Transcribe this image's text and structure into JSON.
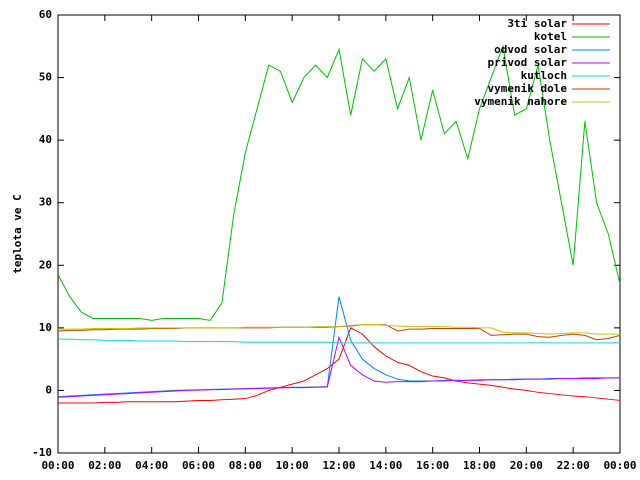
{
  "chart_data": {
    "type": "line",
    "ylabel": "teplota ve C",
    "x": [
      0,
      0.5,
      1,
      1.5,
      2,
      2.5,
      3,
      3.5,
      4,
      4.5,
      5,
      5.5,
      6,
      6.5,
      7,
      7.5,
      8,
      8.5,
      9,
      9.5,
      10,
      10.5,
      11,
      11.5,
      12,
      12.5,
      13,
      13.5,
      14,
      14.5,
      15,
      15.5,
      16,
      16.5,
      17,
      17.5,
      18,
      18.5,
      19,
      19.5,
      20,
      20.5,
      21,
      21.5,
      22,
      22.5,
      23,
      23.5,
      24
    ],
    "xlim": [
      0,
      24
    ],
    "xticks": [
      {
        "value": 0,
        "label": "00:00"
      },
      {
        "value": 2,
        "label": "02:00"
      },
      {
        "value": 4,
        "label": "04:00"
      },
      {
        "value": 6,
        "label": "06:00"
      },
      {
        "value": 8,
        "label": "08:00"
      },
      {
        "value": 10,
        "label": "10:00"
      },
      {
        "value": 12,
        "label": "12:00"
      },
      {
        "value": 14,
        "label": "14:00"
      },
      {
        "value": 16,
        "label": "16:00"
      },
      {
        "value": 18,
        "label": "18:00"
      },
      {
        "value": 20,
        "label": "20:00"
      },
      {
        "value": 22,
        "label": "22:00"
      },
      {
        "value": 24,
        "label": "00:00"
      }
    ],
    "ylim": [
      -10,
      60
    ],
    "yticks": [
      -10,
      0,
      10,
      20,
      30,
      40,
      50,
      60
    ],
    "legend": "top-right",
    "series": [
      {
        "name": "3ti solar",
        "color": "#ff0000",
        "values": [
          -2,
          -2,
          -2,
          -2,
          -1.9,
          -1.9,
          -1.8,
          -1.8,
          -1.8,
          -1.8,
          -1.8,
          -1.7,
          -1.6,
          -1.6,
          -1.5,
          -1.4,
          -1.3,
          -0.8,
          0,
          0.5,
          1,
          1.5,
          2.5,
          3.5,
          5,
          10,
          9,
          7,
          5.5,
          4.5,
          4,
          3,
          2.3,
          2,
          1.5,
          1.2,
          1,
          0.8,
          0.5,
          0.2,
          0,
          -0.3,
          -0.5,
          -0.7,
          -0.9,
          -1,
          -1.2,
          -1.4,
          -1.6
        ]
      },
      {
        "name": "kotel",
        "color": "#00c000",
        "values": [
          18.5,
          15,
          12.5,
          11.5,
          11.5,
          11.5,
          11.5,
          11.5,
          11.2,
          11.5,
          11.5,
          11.5,
          11.5,
          11.2,
          14,
          28,
          38,
          45,
          52,
          51,
          46,
          50,
          52,
          50,
          54.5,
          44,
          53,
          51,
          53,
          45,
          50,
          40,
          48,
          41,
          43,
          37,
          45,
          50,
          55,
          44,
          45,
          52,
          40,
          30,
          20,
          43,
          30,
          25,
          17
        ]
      },
      {
        "name": "odvod solar",
        "color": "#0080ff",
        "values": [
          -1,
          -0.9,
          -0.8,
          -0.7,
          -0.6,
          -0.5,
          -0.4,
          -0.3,
          -0.2,
          -0.1,
          0,
          0.05,
          0.1,
          0.15,
          0.2,
          0.25,
          0.3,
          0.35,
          0.4,
          0.45,
          0.5,
          0.5,
          0.55,
          0.6,
          15,
          8,
          5,
          3.5,
          2.5,
          1.8,
          1.5,
          1.5,
          1.5,
          1.6,
          1.6,
          1.6,
          1.7,
          1.7,
          1.7,
          1.8,
          1.8,
          1.8,
          1.9,
          1.9,
          1.9,
          2,
          2,
          2,
          2
        ]
      },
      {
        "name": "privod solar",
        "color": "#c000ff",
        "values": [
          -1.1,
          -1,
          -0.9,
          -0.8,
          -0.7,
          -0.6,
          -0.5,
          -0.4,
          -0.3,
          -0.2,
          -0.1,
          0,
          0.05,
          0.1,
          0.15,
          0.2,
          0.25,
          0.3,
          0.35,
          0.4,
          0.45,
          0.45,
          0.5,
          0.55,
          8.5,
          4,
          2.5,
          1.5,
          1.3,
          1.4,
          1.4,
          1.4,
          1.5,
          1.5,
          1.6,
          1.6,
          1.6,
          1.7,
          1.7,
          1.7,
          1.8,
          1.8,
          1.8,
          1.9,
          1.9,
          1.9,
          1.9,
          2,
          2
        ]
      },
      {
        "name": "kutloch",
        "color": "#00dddd",
        "values": [
          8.2,
          8.2,
          8.1,
          8.1,
          8,
          8,
          8,
          7.9,
          7.9,
          7.9,
          7.9,
          7.8,
          7.8,
          7.8,
          7.8,
          7.8,
          7.7,
          7.7,
          7.7,
          7.7,
          7.7,
          7.7,
          7.7,
          7.7,
          7.6,
          7.6,
          7.6,
          7.6,
          7.6,
          7.6,
          7.6,
          7.6,
          7.6,
          7.6,
          7.6,
          7.6,
          7.6,
          7.6,
          7.6,
          7.6,
          7.6,
          7.6,
          7.6,
          7.6,
          7.6,
          7.6,
          7.6,
          7.6,
          7.6
        ]
      },
      {
        "name": "vymenik dole",
        "color": "#c04000",
        "values": [
          9.5,
          9.6,
          9.6,
          9.7,
          9.7,
          9.8,
          9.8,
          9.8,
          9.9,
          9.9,
          9.9,
          10,
          10,
          10,
          10,
          10,
          10,
          10,
          10,
          10.1,
          10.1,
          10.1,
          10.1,
          10.1,
          10.2,
          10.3,
          10.5,
          10.5,
          10.5,
          9.5,
          9.8,
          9.8,
          9.9,
          9.9,
          9.9,
          9.9,
          9.9,
          8.8,
          8.9,
          9,
          9,
          8.6,
          8.5,
          8.8,
          9,
          8.8,
          8.1,
          8.3,
          8.8
        ]
      },
      {
        "name": "vymenik nahore",
        "color": "#c8c800",
        "values": [
          9.8,
          9.8,
          9.8,
          9.9,
          9.9,
          9.9,
          9.9,
          10,
          10,
          10,
          10,
          10,
          10,
          10,
          10,
          10,
          10.1,
          10.1,
          10.1,
          10.1,
          10.1,
          10.1,
          10.2,
          10.2,
          10.2,
          10.4,
          10.5,
          10.5,
          10.4,
          10.3,
          10.2,
          10.2,
          10.2,
          10.2,
          10.1,
          10.1,
          10,
          10,
          9.3,
          9.2,
          9.2,
          9.1,
          9,
          9.1,
          9.2,
          9.2,
          9,
          9,
          9
        ]
      }
    ]
  }
}
